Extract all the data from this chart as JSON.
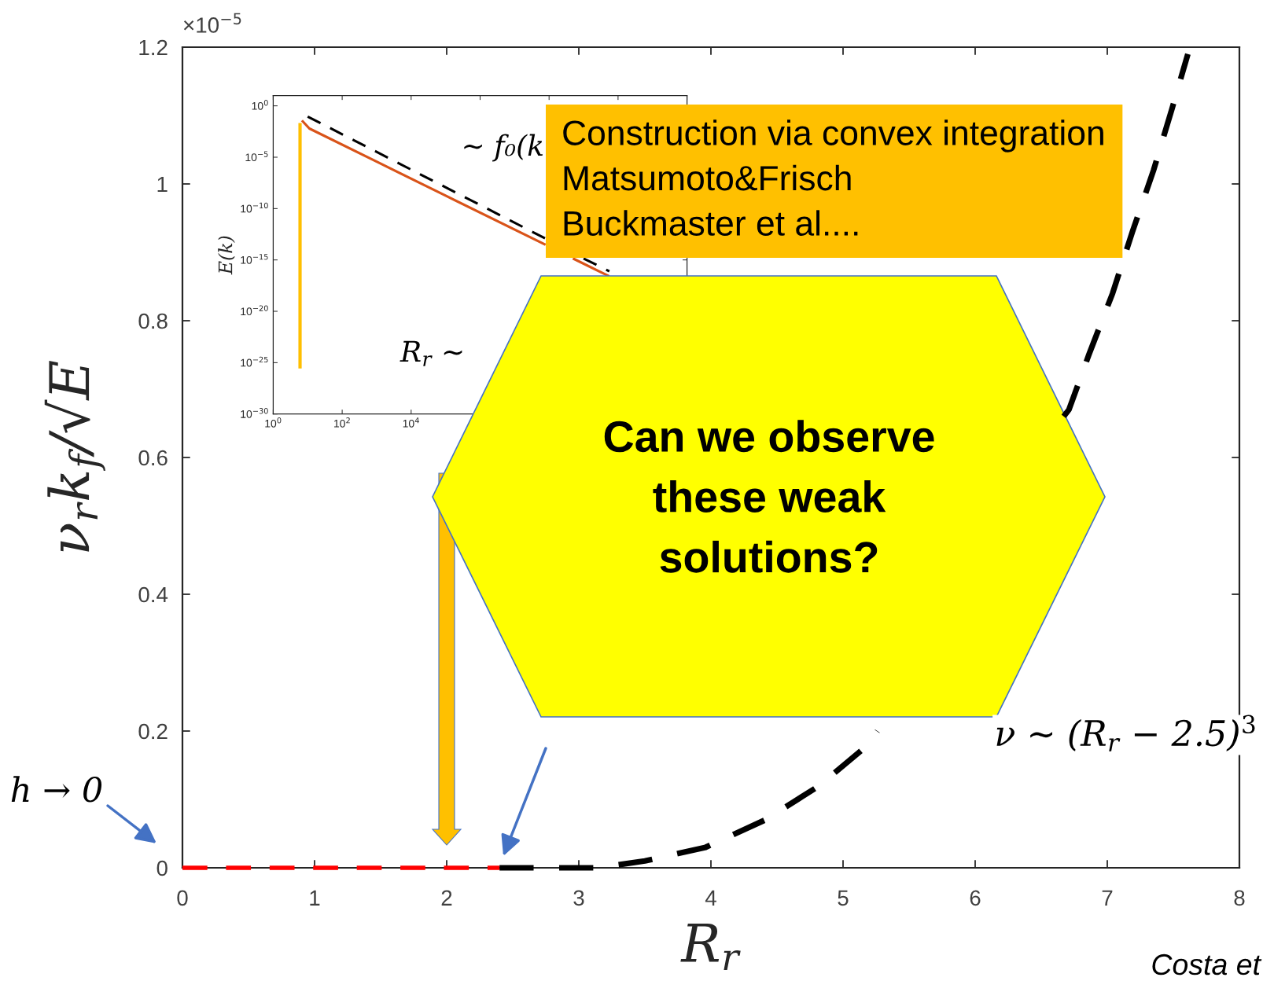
{
  "chart_data": [
    {
      "type": "line",
      "xlabel": "R$_{r}$",
      "ylabel": "ν$_{r}$k$_{f}$/√E",
      "xlim": [
        0,
        8
      ],
      "ylim": [
        0,
        1.2
      ],
      "xticks": [
        0,
        1,
        2,
        3,
        4,
        5,
        6,
        7,
        8
      ],
      "yticks": [
        0,
        0.2,
        0.4,
        0.6,
        0.8,
        1,
        1.2
      ],
      "series": [
        {
          "color": "#ff0000",
          "line_style": "dashed",
          "x": [
            0,
            2.4
          ],
          "values": [
            0,
            0
          ]
        },
        {
          "color": "#000000",
          "line_style": "dashed",
          "x": [
            2.4,
            2.66,
            2.87,
            3.14,
            3.5,
            3.96,
            4.41,
            4.82,
            5.19,
            5.26,
            6.0,
            6.67,
            6.71,
            6.86,
            7.04,
            7.19,
            7.35,
            7.49,
            7.61
          ],
          "values": [
            0,
            0,
            0,
            0,
            0.01,
            0.03,
            0.07,
            0.12,
            0.18,
            0.2,
            null,
            0.66,
            0.67,
            0.75,
            0.84,
            0.93,
            1.02,
            1.11,
            1.19
          ]
        }
      ],
      "annotations": [
        "×10$^{−5}$",
        "h → 0",
        "ν ∼ (R$_{r}$ − 2.5)$^{3}$",
        "Construction via convex integration\nMatsumoto&Frisch\nBuckmaster et al....",
        "Can we observe\nthese weak\nsolutions?",
        "Costa et"
      ]
    },
    {
      "type": "line",
      "ylabel": "E(k)",
      "log": "xy",
      "xlim": [
        1,
        1000000000000.0
      ],
      "ylim": [
        1e-30,
        10
      ],
      "xticks": [
        {
          "value": 1,
          "label": "10$^{0}$"
        },
        {
          "value": 100,
          "label": "10$^{2}$"
        },
        {
          "value": 10000,
          "label": "10$^{4}$"
        },
        {
          "value": 1000000.0,
          "label": null
        },
        {
          "value": 100000000.0,
          "label": null
        },
        {
          "value": 10000000000.0,
          "label": null
        },
        {
          "value": 1000000000000.0,
          "label": null
        }
      ],
      "yticks": [
        {
          "value": 1,
          "label": "10$^{0}$"
        },
        {
          "value": 1e-05,
          "label": "10$^{−5}$"
        },
        {
          "value": 1e-10,
          "label": "10$^{−10}$"
        },
        {
          "value": 1e-15,
          "label": "10$^{−15}$"
        },
        {
          "value": 1e-20,
          "label": "10$^{−20}$"
        },
        {
          "value": 1e-25,
          "label": "10$^{−25}$"
        },
        {
          "value": 1e-30,
          "label": "10$^{−30}$"
        }
      ],
      "series": [
        {
          "color": "#ffbf00",
          "x": [
            6,
            6
          ],
          "values": [
            0.021,
            2.7e-26
          ]
        },
        {
          "color": "#d95319",
          "x": [
            6.8,
            11.2,
            1000,
            100000,
            79000000.0,
            200000000.0,
            490000000.0,
            5500000000.0
          ],
          "values": [
            0.038,
            0.0062,
            3.7e-06,
            1.8e-09,
            3e-14,
            null,
            1.4e-15,
            2.6e-17
          ]
        },
        {
          "color": "#000000",
          "line_style": "dashed",
          "x": [
            10,
            79000000.0,
            200000000.0,
            1000000000.0,
            5600000000.0
          ],
          "values": [
            0.091,
            1.2e-13,
            null,
            1.4e-15,
            7.9e-17
          ]
        }
      ],
      "annotations": [
        "∼ f₀(k",
        "R$_{r}$ ∼"
      ]
    }
  ]
}
